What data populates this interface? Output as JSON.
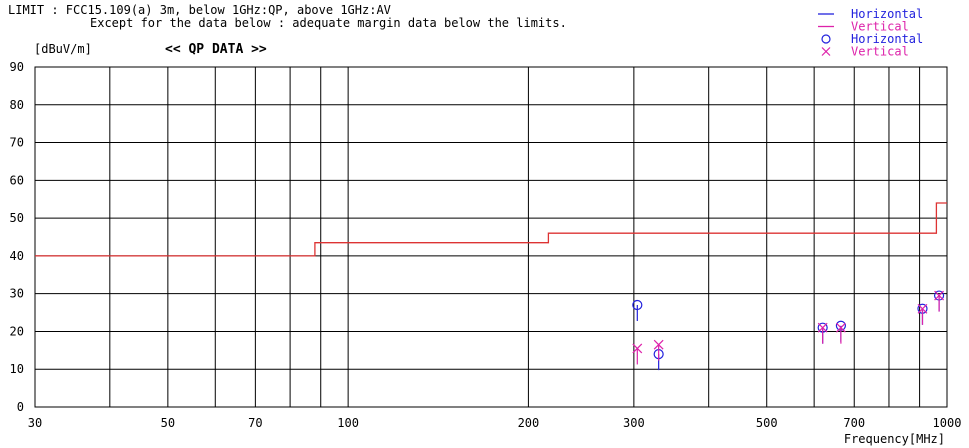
{
  "header": {
    "limit_line": "LIMIT : FCC15.109(a) 3m, below 1GHz:QP, above 1GHz:AV",
    "note_line": "Except for the data below : adequate margin data below the limits."
  },
  "chart_data": {
    "type": "scatter",
    "title": "<< QP DATA >>",
    "ylabel": "[dBuV/m]",
    "xlabel": "Frequency[MHz]",
    "xscale": "log",
    "xlim": [
      30,
      1000
    ],
    "ylim": [
      0,
      90
    ],
    "xticks": [
      30,
      50,
      70,
      100,
      200,
      300,
      500,
      700,
      1000
    ],
    "xtick_labels": [
      "30",
      "50",
      "70",
      "100",
      "200",
      "300",
      "500",
      "700",
      "1000"
    ],
    "xgrid": [
      30,
      40,
      50,
      60,
      70,
      80,
      90,
      100,
      200,
      300,
      400,
      500,
      600,
      700,
      800,
      900,
      1000
    ],
    "yticks": [
      0,
      10,
      20,
      30,
      40,
      50,
      60,
      70,
      80,
      90
    ],
    "ytick_labels": [
      "0",
      "10",
      "20",
      "30",
      "40",
      "50",
      "60",
      "70",
      "80",
      "90"
    ],
    "grid": true,
    "legend_position": "top-right",
    "legend": [
      {
        "label": "Horizontal",
        "kind": "line",
        "color": "#2222dd"
      },
      {
        "label": "Vertical",
        "kind": "line",
        "color": "#dd22aa"
      },
      {
        "label": "Horizontal",
        "kind": "circle",
        "color": "#2222dd"
      },
      {
        "label": "Vertical",
        "kind": "cross",
        "color": "#dd22aa"
      }
    ],
    "limit_line": {
      "color": "#dd3333",
      "points": [
        [
          30,
          40
        ],
        [
          88,
          40
        ],
        [
          88,
          43.5
        ],
        [
          216,
          43.5
        ],
        [
          216,
          46
        ],
        [
          960,
          46
        ],
        [
          960,
          54
        ],
        [
          1000,
          54
        ]
      ]
    },
    "series": [
      {
        "name": "Horizontal",
        "marker": "circle",
        "color": "#2222dd",
        "points": [
          [
            304,
            27
          ],
          [
            330,
            14
          ],
          [
            620,
            21
          ],
          [
            665,
            21.5
          ],
          [
            910,
            26
          ],
          [
            970,
            29.5
          ]
        ]
      },
      {
        "name": "Vertical",
        "marker": "cross",
        "color": "#dd22aa",
        "points": [
          [
            304,
            15.5
          ],
          [
            330,
            16.5
          ],
          [
            620,
            21
          ],
          [
            665,
            21
          ],
          [
            910,
            26
          ],
          [
            970,
            29.5
          ]
        ]
      }
    ]
  }
}
